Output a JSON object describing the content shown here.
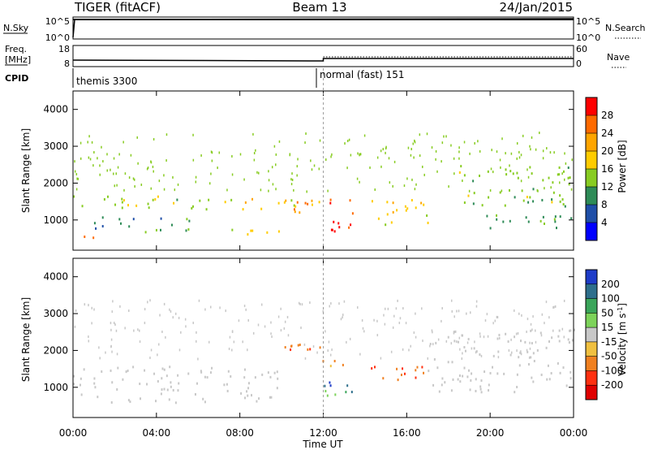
{
  "header": {
    "radar": "TIGER (fitACF)",
    "beam": "Beam 13",
    "date": "24/Jan/2015"
  },
  "strips": {
    "nsky_label": "N.Sky",
    "nsky_ticks": [
      "10^5",
      "10^0"
    ],
    "nsearch_label": "N.Search",
    "nsearch_ticks": [
      "10^5",
      "10^0"
    ],
    "freq_label_1": "Freq.",
    "freq_label_2": "[MHz]",
    "freq_ticks": [
      "18",
      "8"
    ],
    "nave_label": "Nave",
    "nave_ticks": [
      "60",
      "0"
    ],
    "cpid_label": "CPID",
    "cpid_segments": [
      "themis 3300",
      "normal (fast) 151"
    ]
  },
  "x_axis": {
    "label": "Time UT",
    "ticks": [
      "00:00",
      "04:00",
      "08:00",
      "12:00",
      "16:00",
      "20:00",
      "00:00"
    ]
  },
  "power_panel": {
    "ylabel": "Slant Range [km]",
    "yticks": [
      "4000",
      "3000",
      "2000",
      "1000"
    ],
    "cbar_label": "Power [dB]",
    "cbar_ticks": [
      "28",
      "24",
      "20",
      "16",
      "12",
      "8",
      "4"
    ],
    "cbar_colors": [
      "#ff0000",
      "#ff6a00",
      "#ffa500",
      "#ffcc00",
      "#88cc22",
      "#2e8b57",
      "#1f4fa8",
      "#0000ff"
    ]
  },
  "velocity_panel": {
    "ylabel": "Slant Range [km]",
    "yticks": [
      "4000",
      "3000",
      "2000",
      "1000"
    ],
    "cbar_label": "Velocity [m s",
    "cbar_label_sup": "-1",
    "cbar_label_end": "]",
    "cbar_ticks": [
      "200",
      "100",
      "50",
      "15",
      "-15",
      "-50",
      "-100",
      "-200"
    ],
    "cbar_colors": [
      "#1e3cc8",
      "#2e6f8c",
      "#3aa55a",
      "#7dd35a",
      "#c8c8c8",
      "#f0c040",
      "#f08020",
      "#ff3010",
      "#e00000"
    ]
  },
  "chart_data": {
    "type": "heatmap",
    "x_range_hours": [
      0,
      24
    ],
    "y_range_km": [
      180,
      4500
    ],
    "panels": [
      {
        "name": "Power [dB]",
        "regions": [
          {
            "t": [
              0,
              7
            ],
            "r": [
              1300,
              1700
            ],
            "value": 12
          },
          {
            "t": [
              0,
              1
            ],
            "r": [
              450,
              700
            ],
            "value": 24
          },
          {
            "t": [
              1,
              6
            ],
            "r": [
              700,
              1100
            ],
            "value": 8
          },
          {
            "t": [
              7,
              12
            ],
            "r": [
              1250,
              1600
            ],
            "value": 16
          },
          {
            "t": [
              7,
              10
            ],
            "r": [
              600,
              850
            ],
            "value": 16
          },
          {
            "t": [
              10.5,
              13.5
            ],
            "r": [
              1200,
              1600
            ],
            "value": 24
          },
          {
            "t": [
              12,
              15
            ],
            "r": [
              700,
              1000
            ],
            "value": 28
          },
          {
            "t": [
              14,
              17
            ],
            "r": [
              900,
              1600
            ],
            "value": 16
          },
          {
            "t": [
              18.5,
              24
            ],
            "r": [
              1400,
              2500
            ],
            "value": 12
          },
          {
            "t": [
              19,
              24
            ],
            "r": [
              800,
              1200
            ],
            "value": 8
          }
        ]
      },
      {
        "name": "Velocity [m s-1]",
        "regions": [
          {
            "t": [
              0,
              10
            ],
            "r": [
              600,
              1600
            ],
            "value": 0
          },
          {
            "t": [
              10,
              12
            ],
            "r": [
              1700,
              2300
            ],
            "value": -100
          },
          {
            "t": [
              12,
              14
            ],
            "r": [
              900,
              1200
            ],
            "value": 200
          },
          {
            "t": [
              12,
              13
            ],
            "r": [
              1500,
              1800
            ],
            "value": -50
          },
          {
            "t": [
              14,
              17
            ],
            "r": [
              1100,
              1600
            ],
            "value": -100
          },
          {
            "t": [
              12,
              15
            ],
            "r": [
              800,
              950
            ],
            "value": 50
          },
          {
            "t": [
              17,
              24
            ],
            "r": [
              900,
              2600
            ],
            "value": 0
          }
        ]
      }
    ]
  }
}
